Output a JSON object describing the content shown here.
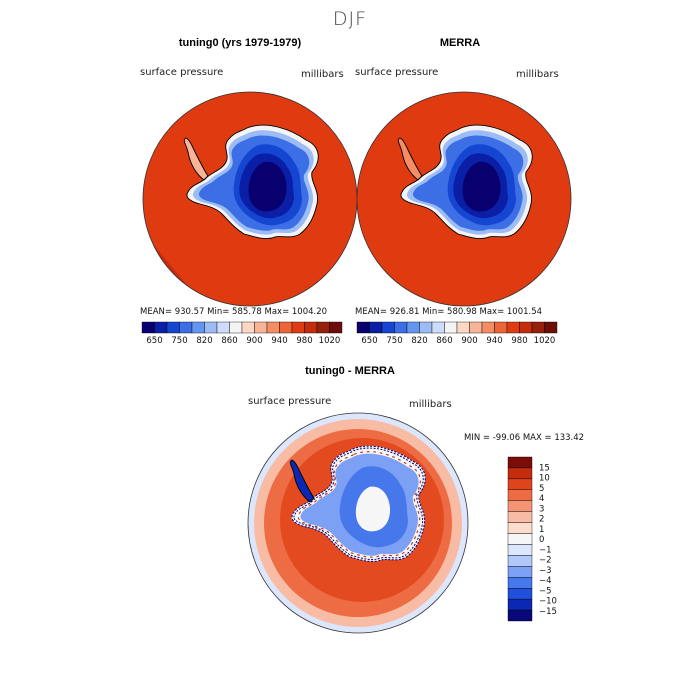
{
  "figure": {
    "season": "DJF",
    "panel_left": {
      "title": "tuning0 (yrs 1979-1979)",
      "variable": "surface pressure",
      "units": "millibars",
      "stats": "MEAN= 930.57   Min= 585.78   Max= 1004.20"
    },
    "panel_right": {
      "title": "MERRA",
      "variable": "surface pressure",
      "units": "millibars",
      "stats": "MEAN= 926.81   Min= 580.98   Max= 1001.54"
    },
    "panel_diff": {
      "title": "tuning0 - MERRA",
      "variable": "surface pressure",
      "units": "millibars",
      "stats": "MIN = -99.06  MAX = 133.42"
    }
  },
  "colors": {
    "abs_scale": [
      "#08006e",
      "#0a1ea6",
      "#1446d2",
      "#3c6ee6",
      "#6496f0",
      "#9cbcf6",
      "#ccdcfa",
      "#f4f4f4",
      "#fcd8c4",
      "#f8b498",
      "#f48c64",
      "#ec6438",
      "#e03c14",
      "#c42c0c",
      "#96200a",
      "#6e0c08"
    ],
    "diff_scale": [
      "#08087a",
      "#0a28b4",
      "#1e50dc",
      "#4678ec",
      "#7ca0f4",
      "#b2c8fa",
      "#dce6fc",
      "#f6f6f6",
      "#fcdccc",
      "#f8bca4",
      "#f49474",
      "#ee6c44",
      "#e0441c",
      "#c42c0c",
      "#7c0c08"
    ],
    "ocean_abs": "#e03a10",
    "ocean_diff": "#e44a20"
  },
  "chart_data": [
    {
      "type": "heatmap",
      "title": "tuning0 (yrs 1979-1979)",
      "variable": "surface pressure",
      "units": "millibars",
      "projection": "south polar stereographic",
      "mean": 930.57,
      "min": 585.78,
      "max": 1004.2,
      "colorbar_ticks": [
        "650",
        "750",
        "820",
        "860",
        "900",
        "940",
        "980",
        "1020"
      ]
    },
    {
      "type": "heatmap",
      "title": "MERRA",
      "variable": "surface pressure",
      "units": "millibars",
      "projection": "south polar stereographic",
      "mean": 926.81,
      "min": 580.98,
      "max": 1001.54,
      "colorbar_ticks": [
        "650",
        "750",
        "820",
        "860",
        "900",
        "940",
        "980",
        "1020"
      ]
    },
    {
      "type": "heatmap",
      "title": "tuning0 - MERRA",
      "variable": "surface pressure",
      "units": "millibars",
      "projection": "south polar stereographic",
      "min": -99.06,
      "max": 133.42,
      "colorbar_ticks": [
        "15",
        "10",
        "5",
        "4",
        "3",
        "2",
        "1",
        "0",
        "−1",
        "−2",
        "−3",
        "−4",
        "−5",
        "−10",
        "−15"
      ]
    }
  ]
}
